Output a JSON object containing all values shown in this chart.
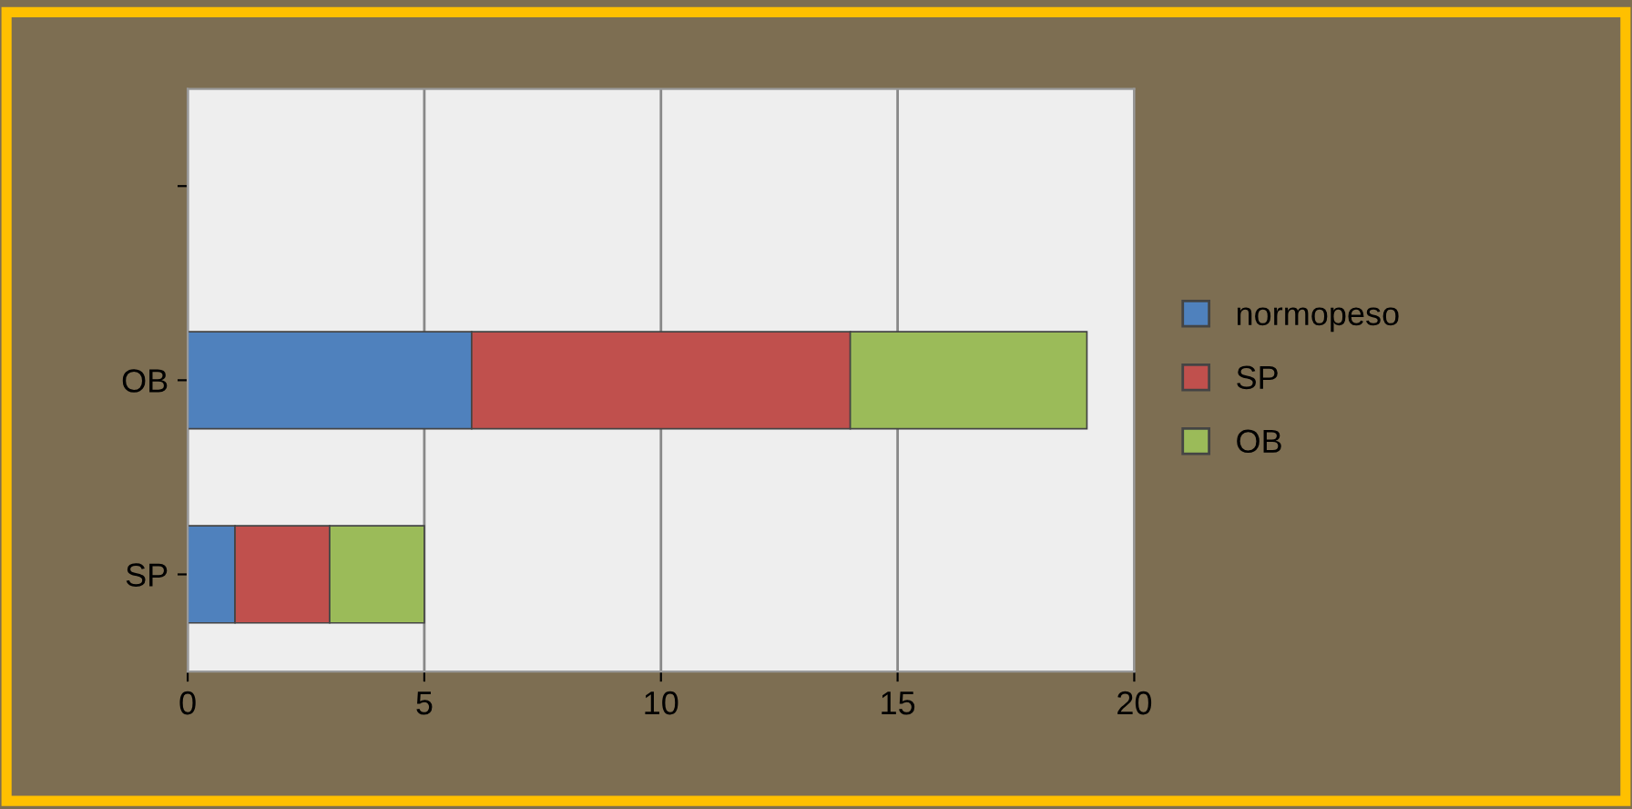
{
  "chart_data": {
    "type": "bar",
    "orientation": "horizontal",
    "stacked": true,
    "categories": [
      null,
      "OB",
      "SP"
    ],
    "series": [
      {
        "name": "normopeso",
        "color": "#4f81bd",
        "values": [
          null,
          6,
          1
        ]
      },
      {
        "name": "SP",
        "color": "#c0504d",
        "values": [
          null,
          8,
          2
        ]
      },
      {
        "name": "OB",
        "color": "#9bbb59",
        "values": [
          null,
          5,
          2
        ]
      }
    ],
    "xlim": [
      0,
      20
    ],
    "xticks": [
      0,
      5,
      10,
      15,
      20
    ],
    "grid": "x",
    "legend": "right"
  }
}
